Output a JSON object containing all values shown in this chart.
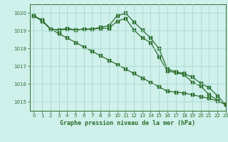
{
  "title": "Graphe pression niveau de la mer (hPa)",
  "background_color": "#cff0eb",
  "plot_bg_color": "#cff0eb",
  "grid_color": "#a8d8ce",
  "line_color": "#2d6e2d",
  "xlim": [
    -0.5,
    23
  ],
  "ylim": [
    1014.5,
    1020.5
  ],
  "yticks": [
    1015,
    1016,
    1017,
    1018,
    1019,
    1020
  ],
  "xticks": [
    0,
    1,
    2,
    3,
    4,
    5,
    6,
    7,
    8,
    9,
    10,
    11,
    12,
    13,
    14,
    15,
    16,
    17,
    18,
    19,
    20,
    21,
    22,
    23
  ],
  "line1_straight": [
    1019.85,
    1019.55,
    1019.1,
    1018.85,
    1018.6,
    1018.35,
    1018.1,
    1017.85,
    1017.6,
    1017.35,
    1017.1,
    1016.85,
    1016.6,
    1016.35,
    1016.1,
    1015.85,
    1015.6,
    1015.55,
    1015.5,
    1015.4,
    1015.3,
    1015.2,
    1015.05,
    1014.85
  ],
  "line2_peak": [
    1019.85,
    1019.6,
    1019.1,
    1019.05,
    1019.1,
    1019.05,
    1019.1,
    1019.1,
    1019.2,
    1019.3,
    1019.85,
    1020.0,
    1019.5,
    1019.05,
    1018.6,
    1018.0,
    1016.85,
    1016.7,
    1016.6,
    1016.4,
    1016.05,
    1015.8,
    1015.35,
    1014.85
  ],
  "line3_mid": [
    1019.85,
    1019.6,
    1019.1,
    1019.05,
    1019.15,
    1019.05,
    1019.1,
    1019.1,
    1019.15,
    1019.15,
    1019.55,
    1019.7,
    1019.05,
    1018.6,
    1018.35,
    1017.55,
    1016.75,
    1016.65,
    1016.55,
    1016.1,
    1015.9,
    1015.4,
    1015.1,
    1014.85
  ]
}
